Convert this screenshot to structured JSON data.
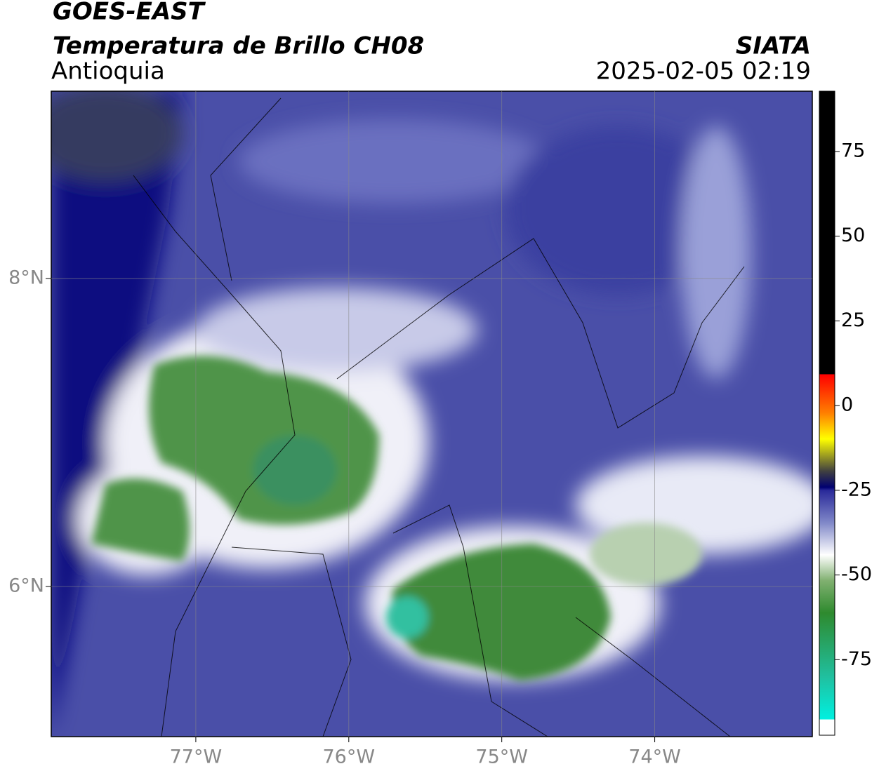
{
  "header": {
    "title": "GOES-EAST",
    "subtitle": "Temperatura de Brillo CH08",
    "region": "Antioquia",
    "source": "SIATA",
    "datetime": "2025-02-05 02:19"
  },
  "map": {
    "xlim": [
      -77.945,
      -72.97
    ],
    "ylim": [
      5.025,
      9.216
    ],
    "xticks": [
      {
        "value": -77,
        "label": "77°W"
      },
      {
        "value": -76,
        "label": "76°W"
      },
      {
        "value": -75,
        "label": "75°W"
      },
      {
        "value": -74,
        "label": "74°W"
      }
    ],
    "yticks": [
      {
        "value": 6,
        "label": "6°N"
      },
      {
        "value": 8,
        "label": "8°N"
      }
    ],
    "grid": true
  },
  "colorbar": {
    "ylim": [
      -97.3,
      92.8
    ],
    "yticks": [
      -75,
      -50,
      -25,
      0,
      25,
      50,
      75
    ]
  }
}
